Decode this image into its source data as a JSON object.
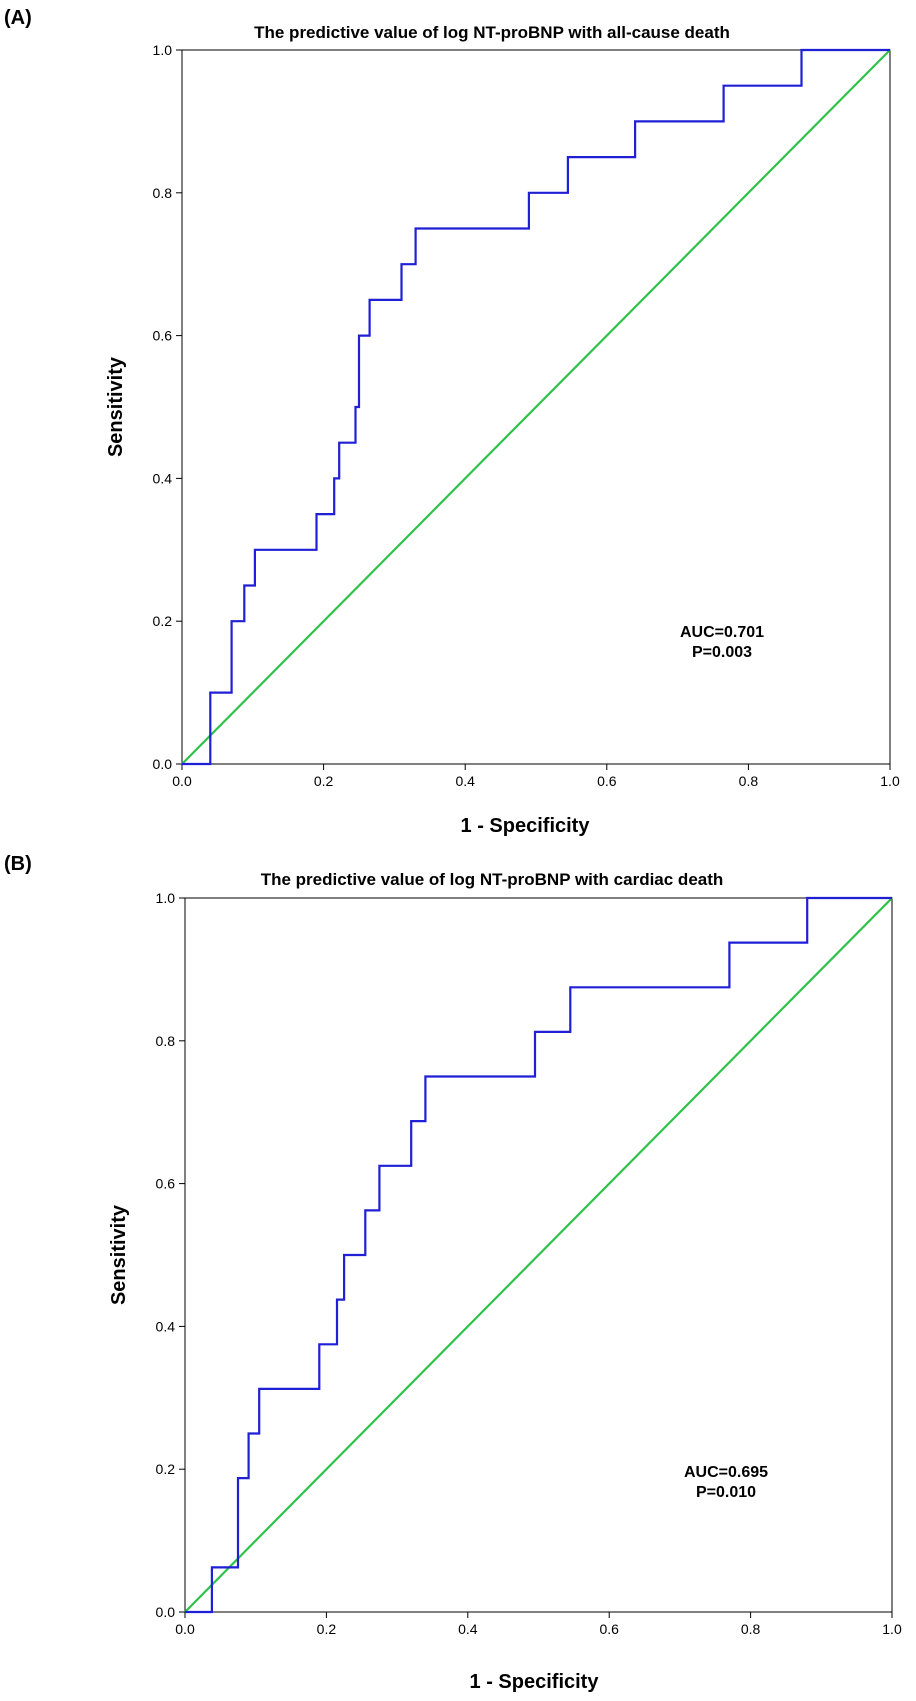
{
  "chart_data": [
    {
      "type": "line",
      "panel_label": "(A)",
      "title": "The predictive value of log NT-proBNP with all-cause death",
      "xlabel": "1 - Specificity",
      "ylabel": "Sensitivity",
      "xlim": [
        0,
        1
      ],
      "ylim": [
        0,
        1
      ],
      "xticks": [
        "0.0",
        "0.2",
        "0.4",
        "0.6",
        "0.8",
        "1.0"
      ],
      "yticks": [
        "0.0",
        "0.2",
        "0.4",
        "0.6",
        "0.8",
        "1.0"
      ],
      "grid": false,
      "legend": "none",
      "annotations": [
        "AUC=0.701",
        "P=0.003"
      ],
      "series": [
        {
          "color": "#1f1fd6",
          "x": [
            0,
            0.04,
            0.04,
            0.07,
            0.07,
            0.088,
            0.088,
            0.103,
            0.103,
            0.19,
            0.19,
            0.215,
            0.215,
            0.222,
            0.222,
            0.245,
            0.245,
            0.25,
            0.25,
            0.265,
            0.265,
            0.31,
            0.31,
            0.33,
            0.33,
            0.49,
            0.49,
            0.545,
            0.545,
            0.64,
            0.64,
            0.765,
            0.765,
            0.875,
            0.875,
            1.0
          ],
          "y": [
            0,
            0,
            0.1,
            0.1,
            0.2,
            0.2,
            0.25,
            0.25,
            0.3,
            0.3,
            0.35,
            0.35,
            0.4,
            0.4,
            0.45,
            0.45,
            0.5,
            0.5,
            0.6,
            0.6,
            0.65,
            0.65,
            0.7,
            0.7,
            0.75,
            0.75,
            0.8,
            0.8,
            0.85,
            0.85,
            0.9,
            0.9,
            0.95,
            0.95,
            1.0,
            1.0
          ]
        },
        {
          "color": "#2fc24a",
          "x": [
            0,
            1
          ],
          "y": [
            0,
            1
          ]
        }
      ]
    },
    {
      "type": "line",
      "panel_label": "(B)",
      "title": "The predictive value of log NT-proBNP with cardiac death",
      "xlabel": "1 - Specificity",
      "ylabel": "Sensitivity",
      "xlim": [
        0,
        1
      ],
      "ylim": [
        0,
        1
      ],
      "xticks": [
        "0.0",
        "0.2",
        "0.4",
        "0.6",
        "0.8",
        "1.0"
      ],
      "yticks": [
        "0.0",
        "0.2",
        "0.4",
        "0.6",
        "0.8",
        "1.0"
      ],
      "grid": false,
      "legend": "none",
      "annotations": [
        "AUC=0.695",
        "P=0.010"
      ],
      "series": [
        {
          "color": "#1f1fd6",
          "x": [
            0,
            0.038,
            0.038,
            0.075,
            0.075,
            0.09,
            0.09,
            0.105,
            0.105,
            0.19,
            0.19,
            0.215,
            0.215,
            0.225,
            0.225,
            0.255,
            0.255,
            0.275,
            0.275,
            0.32,
            0.32,
            0.34,
            0.34,
            0.495,
            0.495,
            0.545,
            0.545,
            0.77,
            0.77,
            0.88,
            0.88,
            1.0
          ],
          "y": [
            0,
            0,
            0.0625,
            0.0625,
            0.1875,
            0.1875,
            0.25,
            0.25,
            0.3125,
            0.3125,
            0.375,
            0.375,
            0.4375,
            0.4375,
            0.5,
            0.5,
            0.5625,
            0.5625,
            0.625,
            0.625,
            0.6875,
            0.6875,
            0.75,
            0.75,
            0.8125,
            0.8125,
            0.875,
            0.875,
            0.9375,
            0.9375,
            1.0,
            1.0
          ]
        },
        {
          "color": "#2fc24a",
          "x": [
            0,
            1
          ],
          "y": [
            0,
            1
          ]
        }
      ]
    }
  ]
}
